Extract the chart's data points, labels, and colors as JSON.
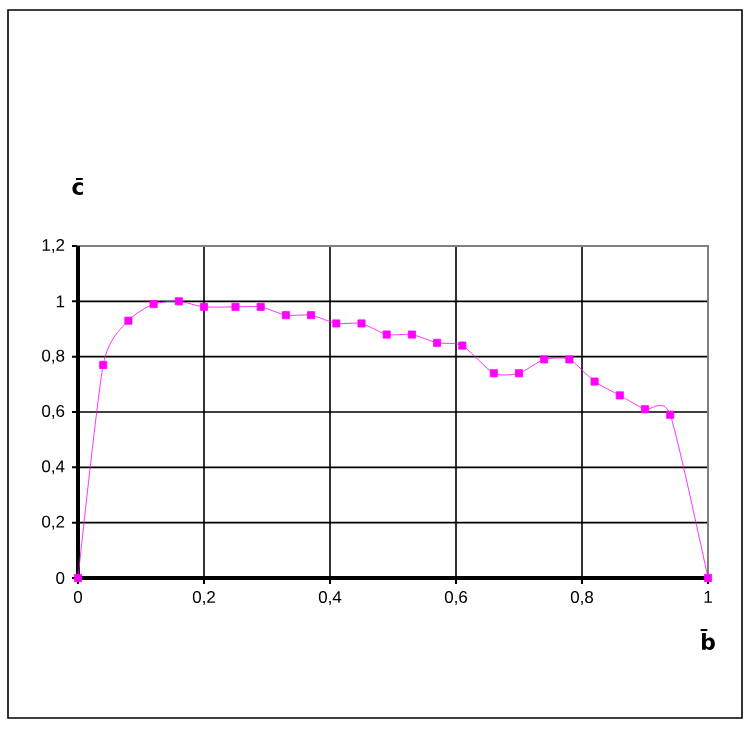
{
  "chart_data": {
    "type": "line",
    "xlabel": "b̄",
    "ylabel": "c̄",
    "x": [
      0,
      0.04,
      0.08,
      0.12,
      0.16,
      0.2,
      0.25,
      0.29,
      0.33,
      0.37,
      0.41,
      0.45,
      0.49,
      0.53,
      0.57,
      0.61,
      0.66,
      0.7,
      0.74,
      0.78,
      0.82,
      0.86,
      0.9,
      0.94,
      1
    ],
    "series": [
      {
        "color": "#ff00ff",
        "values": [
          0,
          0.77,
          0.93,
          0.99,
          1,
          0.98,
          0.98,
          0.98,
          0.95,
          0.95,
          0.92,
          0.92,
          0.88,
          0.88,
          0.85,
          0.84,
          0.74,
          0.74,
          0.79,
          0.79,
          0.71,
          0.66,
          0.61,
          0.59,
          0
        ]
      }
    ],
    "xlim": [
      0,
      1
    ],
    "ylim": [
      0,
      1.2
    ],
    "xticks": [
      0,
      {
        "value": 0.2,
        "label": "0,2"
      },
      {
        "value": 0.4,
        "label": "0,4"
      },
      {
        "value": 0.6,
        "label": "0,6"
      },
      {
        "value": 0.8,
        "label": "0,8"
      },
      1
    ],
    "yticks": [
      0,
      {
        "value": 0.2,
        "label": "0,2"
      },
      {
        "value": 0.4,
        "label": "0,4"
      },
      {
        "value": 0.6,
        "label": "0,6"
      },
      {
        "value": 0.8,
        "label": "0,8"
      },
      1,
      {
        "value": 1.2,
        "label": "1,2"
      }
    ],
    "grid": true,
    "marker": "square",
    "line_style": "solid"
  }
}
